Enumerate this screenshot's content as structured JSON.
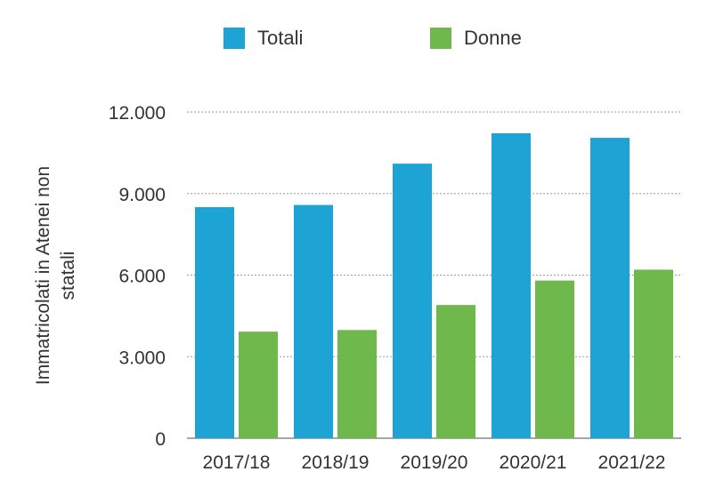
{
  "chart_data": {
    "type": "bar",
    "categories": [
      "2017/18",
      "2018/19",
      "2019/20",
      "2020/21",
      "2021/22"
    ],
    "series": [
      {
        "name": "Totali",
        "color": "#1EA4D4",
        "values": [
          8500,
          8580,
          10100,
          11220,
          11050
        ]
      },
      {
        "name": "Donne",
        "color": "#6FB84B",
        "values": [
          3920,
          3980,
          4900,
          5800,
          6200
        ]
      }
    ],
    "ylabel_lines": [
      "Immatricolati in Atenei non",
      "statali"
    ],
    "ylim": [
      0,
      12000
    ],
    "yticks": [
      0,
      3000,
      6000,
      9000,
      12000
    ],
    "ytick_labels": [
      "0",
      "3.000",
      "6.000",
      "9.000",
      "12.000"
    ],
    "grid": true,
    "legend_position": "top-center"
  }
}
